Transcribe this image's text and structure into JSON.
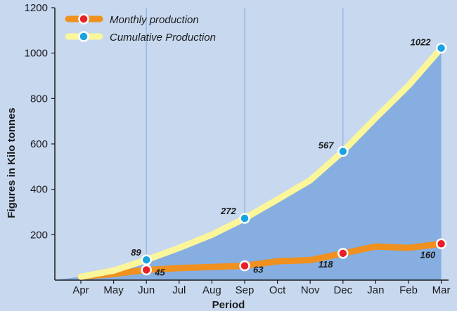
{
  "chart_data": {
    "type": "line",
    "xlabel": "Period",
    "ylabel": "Figures in Kilo tonnes",
    "ylim": [
      0,
      1200
    ],
    "yticks": [
      200,
      400,
      600,
      800,
      1000,
      1200
    ],
    "categories": [
      "Apr",
      "May",
      "Jun",
      "Jul",
      "Aug",
      "Sep",
      "Oct",
      "Nov",
      "Dec",
      "Jan",
      "Feb",
      "Mar"
    ],
    "grid": "vertical lines at Jun, Sep and Dec",
    "legend_position": "top-left",
    "series": [
      {
        "name": "Monthly production",
        "color": "#f0901e",
        "marker_color": "#e8202a",
        "values": [
          15,
          27,
          45,
          53,
          58,
          63,
          83,
          88,
          118,
          148,
          142,
          160
        ],
        "labels": [
          {
            "index": 2,
            "text": "45"
          },
          {
            "index": 5,
            "text": "63"
          },
          {
            "index": 8,
            "text": "118"
          },
          {
            "index": 11,
            "text": "160"
          }
        ],
        "markers": [
          2,
          5,
          8,
          11
        ]
      },
      {
        "name": "Cumulative Production",
        "color": "#fbf69a",
        "marker_color": "#1aa3e0",
        "values": [
          15,
          42,
          89,
          142,
          200,
          272,
          355,
          440,
          567,
          715,
          857,
          1022
        ],
        "labels": [
          {
            "index": 2,
            "text": "89"
          },
          {
            "index": 5,
            "text": "272"
          },
          {
            "index": 8,
            "text": "567"
          },
          {
            "index": 11,
            "text": "1022"
          }
        ],
        "markers": [
          2,
          5,
          8,
          11
        ]
      }
    ],
    "colors": {
      "background": "#c7d8ef",
      "area_fill": "#86aee0",
      "grid": "#8fb2de",
      "axis": "#1b1b1b"
    }
  }
}
